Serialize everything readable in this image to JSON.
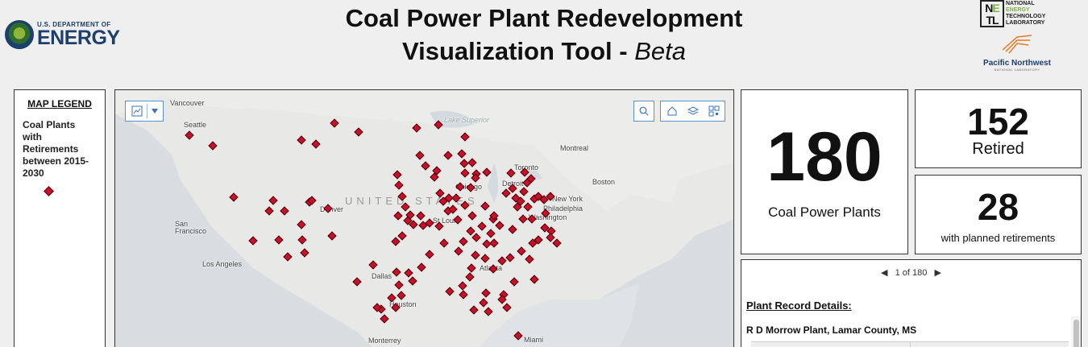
{
  "header": {
    "title_line1": "Coal Power Plant Redevelopment",
    "title_line2": "Visualization Tool - ",
    "title_beta": "Beta",
    "doe_small": "U.S. DEPARTMENT OF",
    "doe_big": "ENERGY",
    "netl_lines": [
      "NATIONAL",
      "ENERGY",
      "TECHNOLOGY",
      "LABORATORY"
    ],
    "pnnl_name": "Pacific Northwest",
    "pnnl_sub": "NATIONAL LABORATORY"
  },
  "legend": {
    "title": "MAP LEGEND",
    "label": "Coal Plants with Retirements between 2015-2030",
    "symbol_color": "#c8102e"
  },
  "map": {
    "country_label": "UNITED STATES",
    "icons": [
      "basemap-gallery-icon",
      "chevron-down-icon",
      "search-icon",
      "home-icon",
      "layers-icon",
      "qr-code-icon"
    ],
    "cities": [
      "Vancouver",
      "Seattle",
      "Montreal",
      "Toronto",
      "Boston",
      "Detroit",
      "Chicago",
      "New York",
      "Philadelphia",
      "Washington",
      "Denver",
      "San Francisco",
      "St Louis",
      "Los Angeles",
      "Dallas",
      "Atlanta",
      "Houston",
      "Monterrey",
      "Miami"
    ],
    "water": "Lake Superior",
    "marker_color": "#c8102e"
  },
  "stats": {
    "total_value": "180",
    "total_label": "Coal Power Plants",
    "retired_value": "152",
    "retired_label": "Retired",
    "planned_value": "28",
    "planned_label": "with planned retirements"
  },
  "details": {
    "pager_text": "1 of 180",
    "heading": "Plant Record Details:",
    "plant_name": "R D Morrow Plant, Lamar County, MS"
  }
}
